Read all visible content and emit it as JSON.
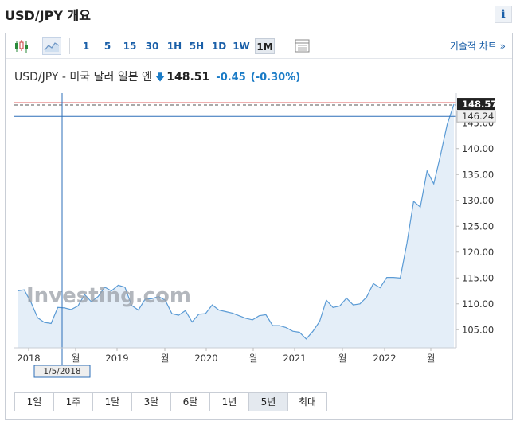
{
  "page": {
    "title": "USD/JPY 개요",
    "info_label": "i"
  },
  "toolbar": {
    "chart_type_icons": [
      "candlestick-icon",
      "area-chart-icon"
    ],
    "intervals": [
      "1",
      "5",
      "15",
      "30",
      "1H",
      "5H",
      "1D",
      "1W",
      "1M"
    ],
    "active_interval": "1M",
    "table_icon": "table-icon",
    "technical_chart_label": "기술적 차트 »"
  },
  "quote": {
    "name": "USD/JPY - 미국 달러 일본 엔",
    "direction_icon": "arrow-down-icon",
    "price": "148.51",
    "change": "-0.45",
    "change_pct": "(-0.30%)"
  },
  "chart_data": {
    "type": "area",
    "title": "",
    "xlabel": "",
    "ylabel": "",
    "x_tick_labels": [
      "2018",
      "월",
      "2019",
      "월",
      "2020",
      "월",
      "2021",
      "월",
      "2022",
      "월"
    ],
    "y_ticks": [
      "105.00",
      "110.00",
      "115.00",
      "120.00",
      "125.00",
      "130.00",
      "135.00",
      "140.00",
      "145.00"
    ],
    "ylim": [
      101.5,
      149.5
    ],
    "grid": false,
    "watermark": "Investing.com",
    "last_price_label": "148.57",
    "crosshair_price_label": "146.24",
    "crosshair_date_label": "1/5/2018",
    "series": [
      {
        "values": [
          112.5,
          112.7,
          110.3,
          107.3,
          106.4,
          106.2,
          109.3,
          109.2,
          108.9,
          109.6,
          111.8,
          110.4,
          111.4,
          113.2,
          112.5,
          113.6,
          113.2,
          109.7,
          108.8,
          110.9,
          111.0,
          111.4,
          110.7,
          108.1,
          107.8,
          108.7,
          106.5,
          108.0,
          108.1,
          109.8,
          108.8,
          108.5,
          108.2,
          107.7,
          107.2,
          106.9,
          107.7,
          107.9,
          105.8,
          105.8,
          105.4,
          104.7,
          104.5,
          103.2,
          104.7,
          106.6,
          110.7,
          109.3,
          109.6,
          111.1,
          109.8,
          110.0,
          111.3,
          113.9,
          113.1,
          115.1,
          115.1,
          115.0,
          121.7,
          129.8,
          128.7,
          135.7,
          133.2,
          138.7,
          144.7,
          148.6
        ]
      }
    ],
    "colors": {
      "line": "#5b9bd5",
      "fill": "#e4eef8",
      "crosshair": "#2d6fb8",
      "last_price_bg": "#222222",
      "crosshair_label_bg": "#eeeeee",
      "dashed_line": "#555555",
      "red_line": "#e06060"
    }
  },
  "range_buttons": [
    "1일",
    "1주",
    "1달",
    "3달",
    "6달",
    "1년",
    "5년",
    "최대"
  ],
  "active_range": "5년"
}
